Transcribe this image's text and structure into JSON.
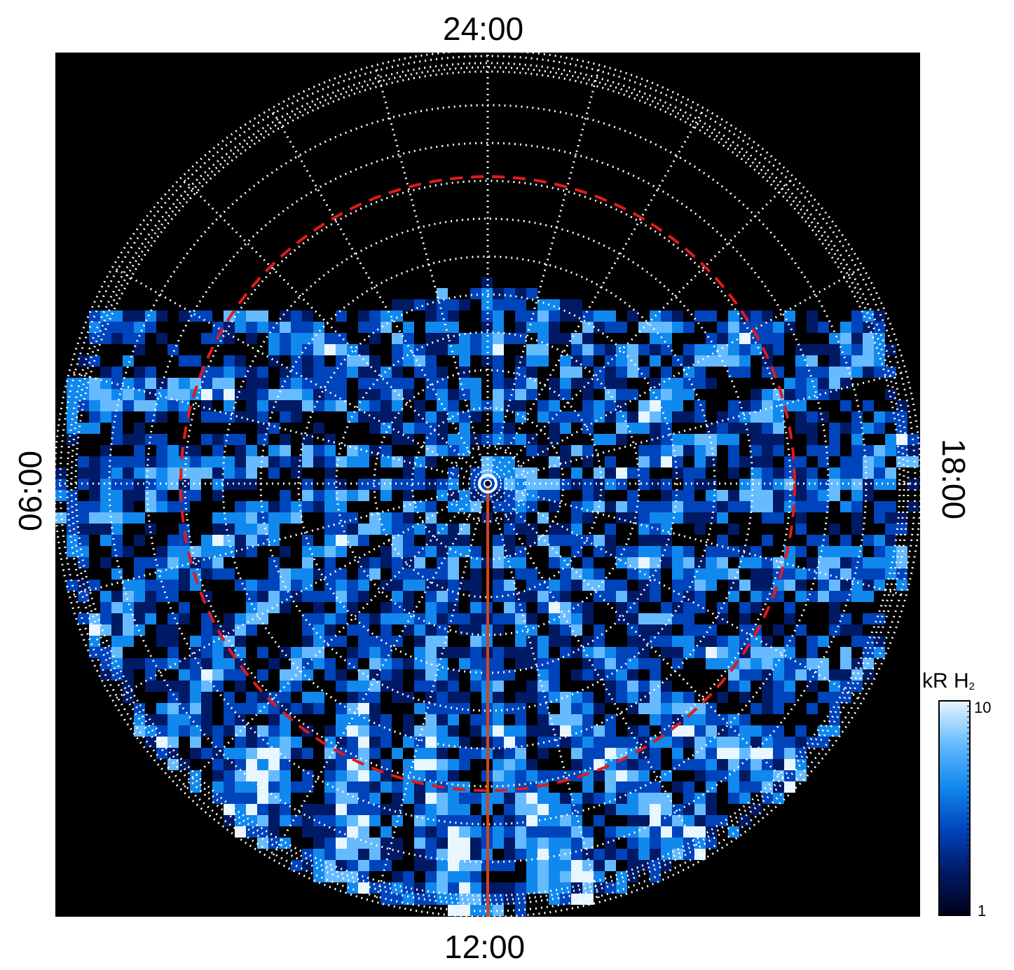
{
  "labels": {
    "top": "24:00",
    "bottom": "12:00",
    "left": "06:00",
    "right": "18:00"
  },
  "colorbar": {
    "title_main": "kR H",
    "title_sub": "2",
    "max_label": "10",
    "min_label": "1",
    "stops": [
      "#00001a",
      "#001a66",
      "#0044bb",
      "#1188ee",
      "#66bbff",
      "#e8f6ff"
    ]
  },
  "colors": {
    "background": "#000000",
    "grid": "#ffffff",
    "reference_circle": "#e01b1b",
    "meridian_line": "#d2451e"
  }
}
